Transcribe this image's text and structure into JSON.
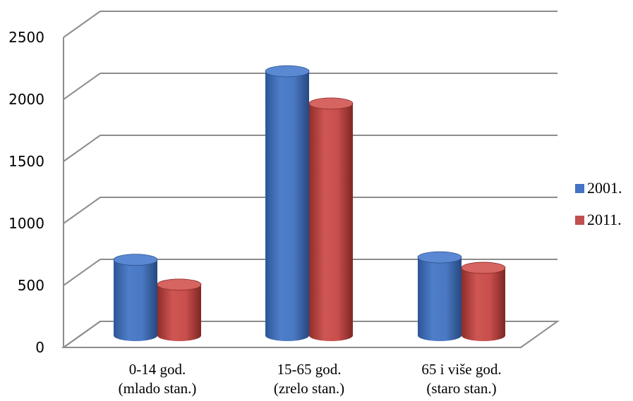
{
  "chart_data": {
    "type": "bar",
    "categories": [
      [
        "0-14 god.",
        "(mlado stan.)"
      ],
      [
        "15-65 god.",
        "(zrelo stan.)"
      ],
      [
        "65 i više god.",
        "(staro stan.)"
      ]
    ],
    "series": [
      {
        "name": "2001.",
        "color": "#4472C4",
        "values": [
          610,
          2130,
          630
        ]
      },
      {
        "name": "2011.",
        "color": "#C0504D",
        "values": [
          410,
          1870,
          545
        ]
      }
    ],
    "yticks": [
      "0",
      "500",
      "1000",
      "1500",
      "2000",
      "2500"
    ],
    "ylim": [
      0,
      2500
    ],
    "grid": true,
    "legend": "right",
    "style": "3d-cylinder"
  }
}
